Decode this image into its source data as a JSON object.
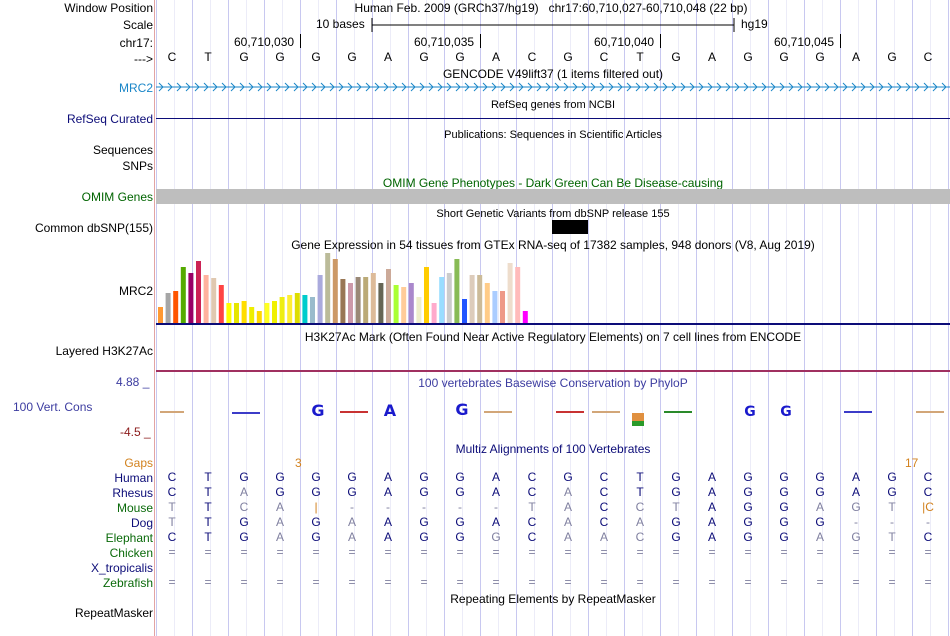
{
  "header": {
    "window_position_label": "Window Position",
    "window_position_value": "Human Feb. 2009 (GRCh37/hg19)   chr17:60,710,027-60,710,048 (22 bp)",
    "scale_label": "Scale",
    "scale_text": "10 bases",
    "scale_assembly": "hg19",
    "chrom_label": "chr17:",
    "ticks": [
      "60,710,030",
      "60,710,035",
      "60,710,040",
      "60,710,045"
    ],
    "arrow_label": "--->",
    "bases": [
      "C",
      "T",
      "G",
      "G",
      "G",
      "G",
      "A",
      "G",
      "G",
      "A",
      "C",
      "G",
      "C",
      "T",
      "G",
      "A",
      "G",
      "G",
      "G",
      "A",
      "G",
      "C"
    ]
  },
  "tracks": {
    "gencode_title": "GENCODE V49lift37 (1 items filtered out)",
    "gencode_item": "MRC2",
    "refseq_title": "RefSeq genes from NCBI",
    "refseq_label": "RefSeq Curated",
    "pubs_title": "Publications: Sequences in Scientific Articles",
    "pubs_label1": "Sequences",
    "pubs_label2": "SNPs",
    "omim_title": "OMIM Gene Phenotypes - Dark Green Can Be Disease-causing",
    "omim_label": "OMIM Genes",
    "dbsnp_title": "Short Genetic Variants from dbSNP release 155",
    "dbsnp_label": "Common dbSNP(155)",
    "gtex_title": "Gene Expression in 54 tissues from GTEx RNA-seq of 17382 samples, 948 donors (V8, Aug 2019)",
    "gtex_label": "MRC2",
    "h3k27_title": "H3K27Ac Mark (Often Found Near Active Regulatory Elements) on 7 cell lines from ENCODE",
    "h3k27_label": "Layered H3K27Ac",
    "phylop_title": "100 vertebrates Basewise Conservation by PhyloP",
    "phylop_label": "100 Vert. Cons",
    "phylop_max": "4.88 _",
    "phylop_min": "-4.5 _",
    "multiz_title": "Multiz Alignments of 100 Vertebrates",
    "gaps_label": "Gaps",
    "gap_counts": [
      "3",
      "17"
    ],
    "repeat_title": "Repeating Elements by RepeatMasker",
    "repeat_label": "RepeatMasker"
  },
  "conservation_letters": [
    "G",
    "A",
    "G",
    "G",
    "G"
  ],
  "colors": {
    "gencode": "#1a86c8",
    "refseq": "#0c0c78",
    "omim_text": "#006400",
    "omim_bar": "#bebebe",
    "gaps": "#d2821e",
    "species": "#0c0c78",
    "phylop_title": "#3c3ca0"
  },
  "alignment": [
    {
      "species": "Human",
      "bases": [
        "C",
        "T",
        "G",
        "G",
        "G",
        "G",
        "A",
        "G",
        "G",
        "A",
        "C",
        "G",
        "C",
        "T",
        "G",
        "A",
        "G",
        "G",
        "G",
        "A",
        "G",
        "C"
      ]
    },
    {
      "species": "Rhesus",
      "bases": [
        "C",
        "T",
        "A",
        "G",
        "G",
        "G",
        "A",
        "G",
        "G",
        "A",
        "C",
        "A",
        "C",
        "T",
        "G",
        "A",
        "G",
        "G",
        "G",
        "A",
        "G",
        "C"
      ]
    },
    {
      "species": "Mouse",
      "bases": [
        "T",
        "T",
        "C",
        "A",
        "|",
        "-",
        "-",
        "-",
        "-",
        "-",
        "T",
        "A",
        "C",
        "C",
        "T",
        "A",
        "G",
        "G",
        "A",
        "G",
        "T",
        "|C"
      ]
    },
    {
      "species": "Dog",
      "bases": [
        "T",
        "T",
        "G",
        "A",
        "G",
        "A",
        "A",
        "G",
        "G",
        "A",
        "C",
        "A",
        "C",
        "A",
        "G",
        "A",
        "G",
        "G",
        "G",
        "-",
        "-",
        "-"
      ]
    },
    {
      "species": "Elephant",
      "bases": [
        "C",
        "T",
        "G",
        "A",
        "G",
        "A",
        "A",
        "G",
        "G",
        "G",
        "C",
        "A",
        "A",
        "C",
        "G",
        "A",
        "G",
        "G",
        "A",
        "G",
        "T",
        "C"
      ]
    },
    {
      "species": "Chicken",
      "bases": [
        "=",
        "=",
        "=",
        "=",
        "=",
        "=",
        "=",
        "=",
        "=",
        "=",
        "=",
        "=",
        "=",
        "=",
        "=",
        "=",
        "=",
        "=",
        "=",
        "=",
        "=",
        "="
      ]
    },
    {
      "species": "X_tropicalis",
      "bases": [
        "",
        "",
        "",
        "",
        "",
        "",
        "",
        "",
        "",
        "",
        "",
        "",
        "",
        "",
        "",
        "",
        "",
        "",
        "",
        "",
        "",
        ""
      ]
    },
    {
      "species": "Zebrafish",
      "bases": [
        "=",
        "=",
        "=",
        "=",
        "=",
        "=",
        "=",
        "=",
        "=",
        "=",
        "=",
        "=",
        "=",
        "=",
        "=",
        "=",
        "=",
        "=",
        "=",
        "=",
        "=",
        "="
      ]
    }
  ]
}
